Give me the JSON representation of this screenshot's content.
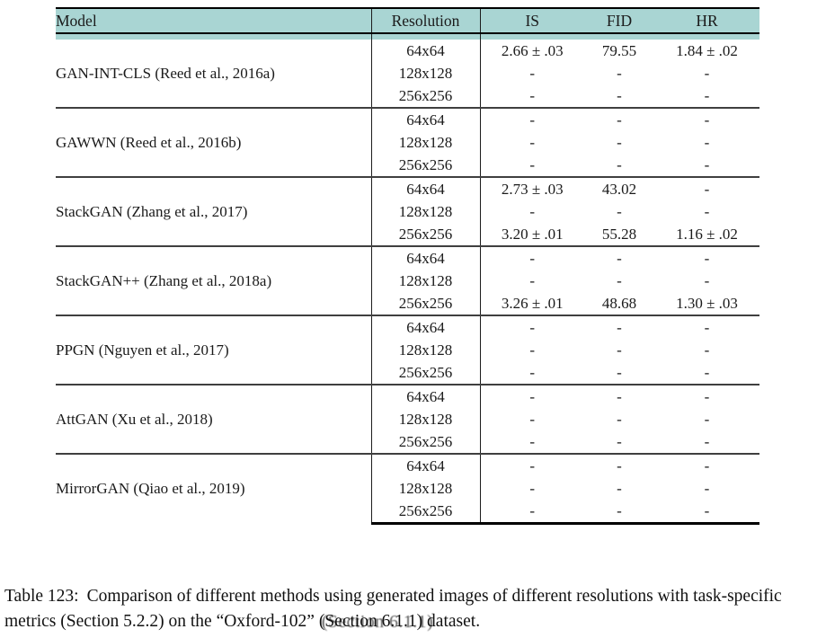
{
  "colors": {
    "header_bg": "#a9d5d3",
    "rule_black": "#000000",
    "rule_gray": "#3f3f3f",
    "text": "#1a1a1a"
  },
  "table": {
    "headers": [
      "Model",
      "Resolution",
      "IS",
      "FID",
      "HR"
    ],
    "groups": [
      {
        "model": "GAN-INT-CLS (Reed et al., 2016a)",
        "resolutions": [
          "64x64",
          "128x128",
          "256x256"
        ],
        "is": [
          "2.66 ± .03",
          "-",
          "-"
        ],
        "fid": [
          "79.55",
          "-",
          "-"
        ],
        "hr": [
          "1.84 ± .02",
          "-",
          "-"
        ]
      },
      {
        "model": "GAWWN (Reed et al., 2016b)",
        "resolutions": [
          "64x64",
          "128x128",
          "256x256"
        ],
        "is": [
          "-",
          "-",
          "-"
        ],
        "fid": [
          "-",
          "-",
          "-"
        ],
        "hr": [
          "-",
          "-",
          "-"
        ]
      },
      {
        "model": "StackGAN (Zhang et al., 2017)",
        "resolutions": [
          "64x64",
          "128x128",
          "256x256"
        ],
        "is": [
          "2.73 ± .03",
          "-",
          "3.20 ± .01"
        ],
        "fid": [
          "43.02",
          "-",
          "55.28"
        ],
        "hr": [
          "-",
          "-",
          "1.16 ± .02"
        ]
      },
      {
        "model": "StackGAN++ (Zhang et al., 2018a)",
        "resolutions": [
          "64x64",
          "128x128",
          "256x256"
        ],
        "is": [
          "-",
          "-",
          "3.26 ± .01"
        ],
        "fid": [
          "-",
          "-",
          "48.68"
        ],
        "hr": [
          "-",
          "-",
          "1.30 ± .03"
        ]
      },
      {
        "model": "PPGN (Nguyen et al., 2017)",
        "resolutions": [
          "64x64",
          "128x128",
          "256x256"
        ],
        "is": [
          "-",
          "-",
          "-"
        ],
        "fid": [
          "-",
          "-",
          "-"
        ],
        "hr": [
          "-",
          "-",
          "-"
        ]
      },
      {
        "model": "AttGAN (Xu et al., 2018)",
        "resolutions": [
          "64x64",
          "128x128",
          "256x256"
        ],
        "is": [
          "-",
          "-",
          "-"
        ],
        "fid": [
          "-",
          "-",
          "-"
        ],
        "hr": [
          "-",
          "-",
          "-"
        ]
      },
      {
        "model": "MirrorGAN (Qiao et al., 2019)",
        "resolutions": [
          "64x64",
          "128x128",
          "256x256"
        ],
        "is": [
          "-",
          "-",
          "-"
        ],
        "fid": [
          "-",
          "-",
          "-"
        ],
        "hr": [
          "-",
          "-",
          "-"
        ]
      }
    ]
  },
  "caption": {
    "label": "Table 123:",
    "line1_rest": "Comparison of different methods using generated images of different resolutions",
    "line2_normal": "with task-specific metrics (Section 5.2.2) on the “Oxford-102” ",
    "line2_garbled": "(Section 6.1.1) dataset."
  }
}
